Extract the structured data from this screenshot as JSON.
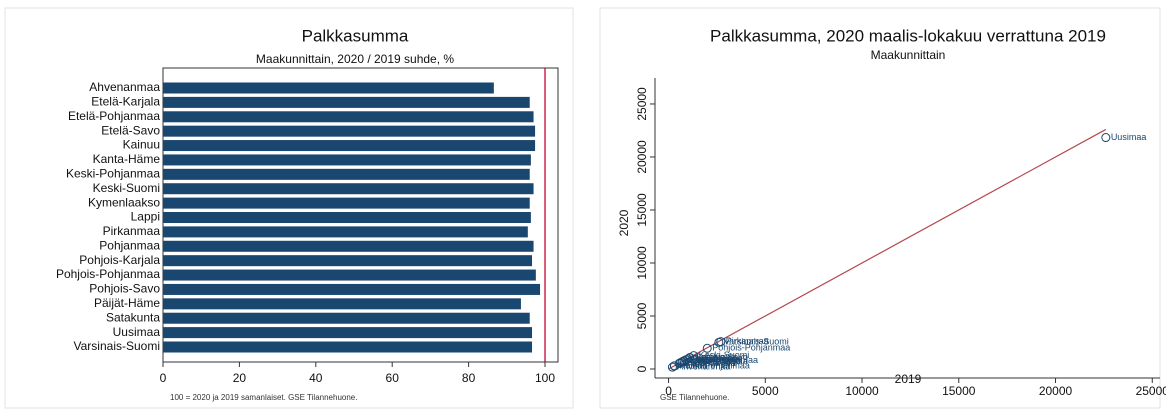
{
  "chart_data": [
    {
      "type": "barh",
      "title": "Palkkasumma",
      "subtitle": "Maakunnittain, 2020 / 2019 suhde, %",
      "note": "100 = 2020 ja 2019 samanlaiset. GSE Tilannehuone.",
      "categories": [
        "Ahvenanmaa",
        "Etelä-Karjala",
        "Etelä-Pohjanmaa",
        "Etelä-Savo",
        "Kainuu",
        "Kanta-Häme",
        "Keski-Pohjanmaa",
        "Keski-Suomi",
        "Kymenlaakso",
        "Lappi",
        "Pirkanmaa",
        "Pohjanmaa",
        "Pohjois-Karjala",
        "Pohjois-Pohjanmaa",
        "Pohjois-Savo",
        "Päijät-Häme",
        "Satakunta",
        "Uusimaa",
        "Varsinais-Suomi"
      ],
      "values": [
        86.6,
        96,
        97,
        97.4,
        97.4,
        96.3,
        96,
        97,
        96,
        96.3,
        95.5,
        97,
        96.6,
        97.6,
        98.7,
        93.7,
        96,
        96.6,
        96.6
      ],
      "color": "#1a476f",
      "refline": 100,
      "refline_color": "#c10534",
      "xlim": [
        0,
        103.4
      ],
      "xticks": [
        0,
        20,
        40,
        60,
        80,
        100
      ]
    },
    {
      "type": "scatter",
      "title": "Palkkasumma, 2020 maalis-lokakuu verrattuna 2019",
      "subtitle": "Maakunnittain",
      "note": "GSE Tilannehuone.",
      "xlabel": "2019",
      "ylabel": "2020",
      "color": "#1a476f",
      "line_color": "#b5464d",
      "labels": [
        "Ahvenanmaa",
        "Etelä-Karjala",
        "Etelä-Pohjanmaa",
        "Etelä-Savo",
        "Kainuu",
        "Kanta-Häme",
        "Keski-Pohjanmaa",
        "Keski-Suomi",
        "Kymenlaakso",
        "Lappi",
        "Pirkanmaa",
        "Pohjanmaa",
        "Pohjois-Karjala",
        "Pohjois-Pohjanmaa",
        "Pohjois-Savo",
        "Päijät-Häme",
        "Satakunta",
        "Uusimaa",
        "Varsinais-Suomi"
      ],
      "x": [
        200,
        550,
        800,
        600,
        300,
        800,
        300,
        1300,
        700,
        800,
        2700,
        900,
        700,
        2000,
        1100,
        1000,
        1100,
        22600,
        2600
      ],
      "y": [
        173,
        528,
        776,
        584,
        292,
        770,
        288,
        1261,
        672,
        770,
        2579,
        873,
        676,
        1952,
        1086,
        937,
        1056,
        21832,
        2512
      ],
      "xlim": [
        -700,
        25400
      ],
      "ylim": [
        -850,
        27450
      ],
      "xticks": [
        0,
        5000,
        10000,
        15000,
        20000,
        25000
      ],
      "yticks": [
        0,
        5000,
        10000,
        15000,
        20000,
        25000
      ]
    }
  ]
}
